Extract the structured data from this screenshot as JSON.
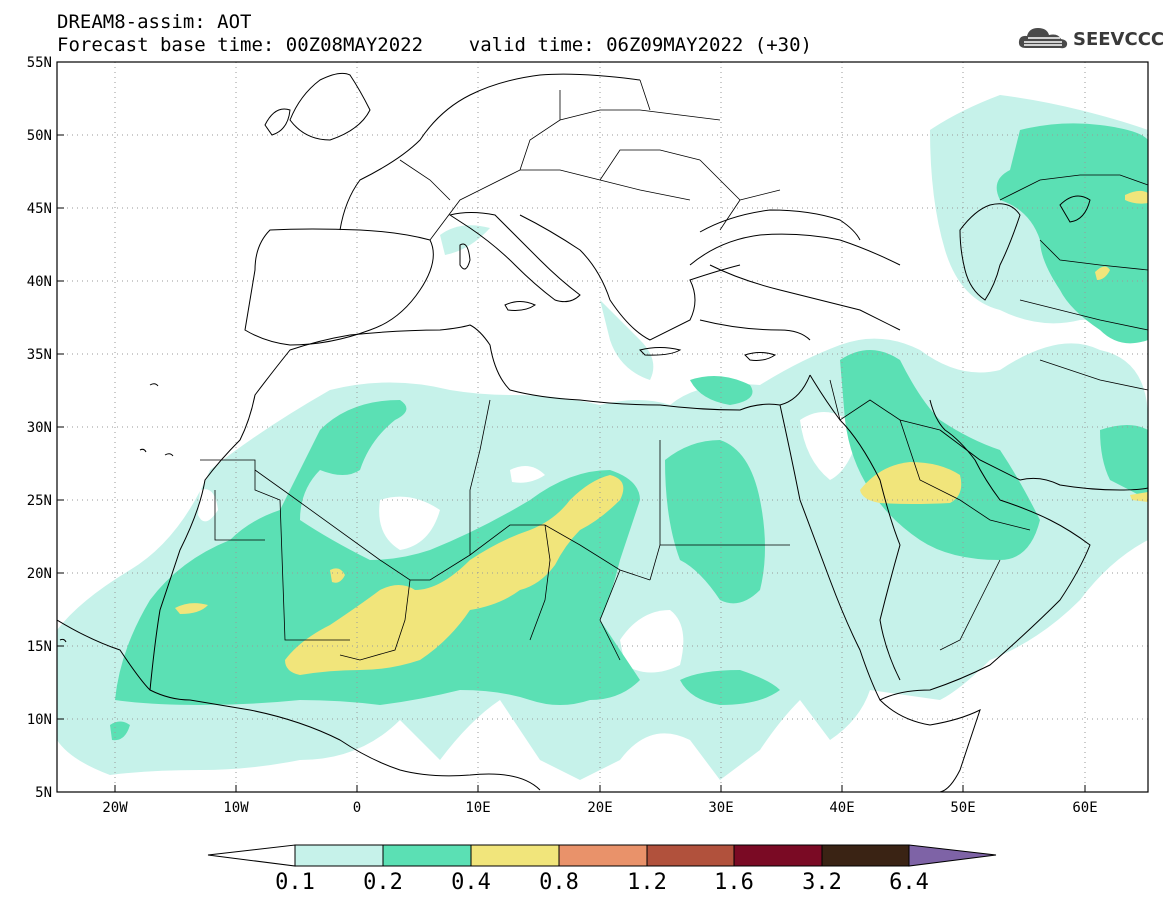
{
  "header": {
    "line1": "DREAM8-assim: AOT",
    "line2": "Forecast base time: 00Z08MAY2022    valid time: 06Z09MAY2022 (+30)"
  },
  "logo": {
    "text": "SEEVCCC",
    "icon": "cloud-icon"
  },
  "map": {
    "region": "North Africa, Middle East and Europe",
    "lat_ticks": [
      "55N",
      "50N",
      "45N",
      "40N",
      "35N",
      "30N",
      "25N",
      "20N",
      "15N",
      "10N",
      "5N"
    ],
    "lon_ticks": [
      "20W",
      "10W",
      "0",
      "10E",
      "20E",
      "30E",
      "40E",
      "50E",
      "60E"
    ]
  },
  "legend": {
    "labels": [
      "0.1",
      "0.2",
      "0.4",
      "0.8",
      "1.2",
      "1.6",
      "3.2",
      "6.4"
    ],
    "colors": [
      "#c6f2ea",
      "#5be0b4",
      "#f1e57b",
      "#e9926a",
      "#b1513c",
      "#7a0a24",
      "#3a2314",
      "#7e63a6"
    ]
  }
}
